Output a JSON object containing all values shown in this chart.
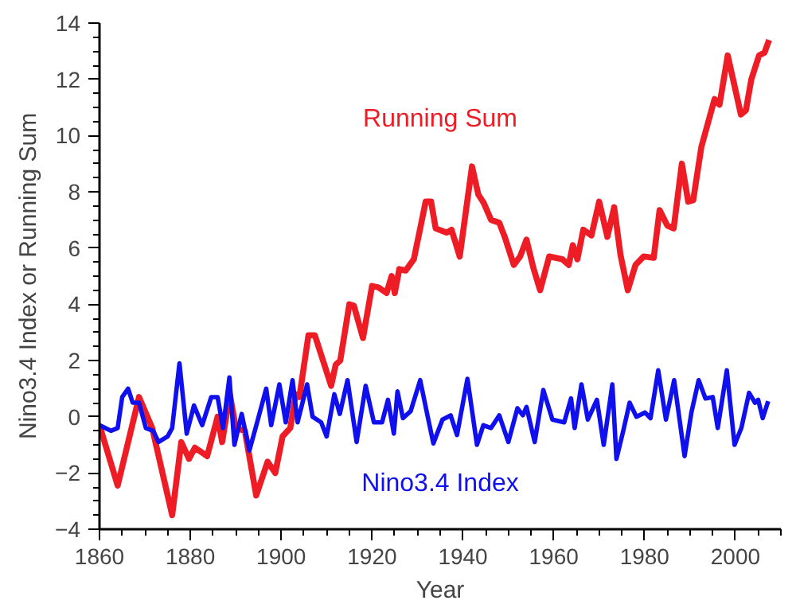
{
  "chart_data": {
    "type": "line",
    "xlabel": "Year",
    "ylabel": "Nino3.4 Index or Running Sum",
    "xlim": [
      1860,
      2010
    ],
    "ylim": [
      -4,
      14
    ],
    "xticks": [
      1860,
      1880,
      1900,
      1920,
      1940,
      1960,
      1980,
      2000
    ],
    "yticks": [
      -4,
      -2,
      0,
      2,
      4,
      6,
      8,
      10,
      12,
      14
    ],
    "grid": false,
    "marker": "none",
    "line_style": "solid",
    "series": [
      {
        "name": "Running Sum",
        "color": "#ee1c24",
        "x": [
          1860,
          1864,
          1868.7,
          1871.6,
          1876,
          1878,
          1879.7,
          1881,
          1883.7,
          1886,
          1887,
          1888.7,
          1890,
          1892,
          1894.5,
          1897,
          1898.7,
          1900.3,
          1902,
          1903.2,
          1904,
          1906,
          1907.4,
          1911,
          1912,
          1913,
          1915,
          1916,
          1918,
          1920,
          1921.4,
          1923.2,
          1924.3,
          1925,
          1926,
          1927.4,
          1929.2,
          1930.6,
          1931.8,
          1933,
          1934,
          1936.4,
          1937.5,
          1939.3,
          1942,
          1943.4,
          1944.6,
          1946.2,
          1948,
          1949.2,
          1951.2,
          1952.6,
          1954,
          1955.5,
          1957,
          1959,
          1961.9,
          1963.3,
          1964.2,
          1965.2,
          1966.5,
          1968.3,
          1970,
          1971.8,
          1973.3,
          1974.7,
          1976.3,
          1978,
          1979.8,
          1982,
          1983.3,
          1985,
          1986.4,
          1988.2,
          1989.6,
          1990.7,
          1992.5,
          1995.4,
          1996.5,
          1998.3,
          2001.2,
          2002.3,
          2003.5,
          2005.2,
          2006.4,
          2007.4
        ],
        "values": [
          -0.3,
          -2.45,
          0.7,
          -0.4,
          -3.5,
          -0.9,
          -1.5,
          -1.1,
          -1.4,
          0,
          -0.9,
          0.8,
          -0.4,
          -0.5,
          -2.8,
          -1.6,
          -2.0,
          -0.7,
          -0.4,
          0.8,
          0.7,
          2.9,
          2.9,
          1.1,
          1.85,
          2.0,
          4.0,
          3.95,
          2.8,
          4.65,
          4.6,
          4.4,
          5.0,
          4.4,
          5.25,
          5.2,
          5.6,
          6.7,
          7.65,
          7.65,
          6.7,
          6.55,
          6.65,
          5.7,
          8.9,
          7.9,
          7.6,
          7.0,
          6.9,
          6.4,
          5.4,
          5.7,
          6.3,
          5.3,
          4.5,
          5.7,
          5.6,
          5.4,
          6.1,
          5.6,
          6.65,
          6.45,
          7.65,
          6.4,
          7.45,
          5.75,
          4.5,
          5.4,
          5.7,
          5.65,
          7.35,
          6.8,
          6.7,
          9.0,
          7.65,
          7.7,
          9.6,
          11.3,
          11.1,
          12.85,
          10.75,
          10.9,
          12.0,
          12.85,
          12.95,
          13.4
        ]
      },
      {
        "name": "Nino3.4 Index",
        "color": "#1010ee",
        "x": [
          1860,
          1862.5,
          1864,
          1865,
          1866.3,
          1867.3,
          1868.7,
          1870.2,
          1871.8,
          1873,
          1875,
          1876,
          1877.6,
          1879.2,
          1880.8,
          1882.6,
          1884.6,
          1886,
          1887.2,
          1888.6,
          1889.7,
          1891.3,
          1893,
          1894.7,
          1896.7,
          1897.8,
          1899.6,
          1901,
          1902.5,
          1903.6,
          1905.7,
          1906.9,
          1908.8,
          1910,
          1911.7,
          1912.9,
          1914.6,
          1916.6,
          1918.6,
          1920.4,
          1922.2,
          1923.5,
          1924.8,
          1925.6,
          1926.8,
          1928.5,
          1930.6,
          1932,
          1933.5,
          1935.5,
          1937.3,
          1938.7,
          1941,
          1943.1,
          1944.5,
          1946.2,
          1948,
          1950,
          1952,
          1953.2,
          1954,
          1955.8,
          1957.7,
          1959.7,
          1962.3,
          1963.8,
          1964.6,
          1966.1,
          1967.5,
          1969.5,
          1971,
          1972.9,
          1973.8,
          1975.3,
          1976.7,
          1978.2,
          1980.1,
          1981.3,
          1983,
          1984.7,
          1986.5,
          1988.8,
          1990.3,
          1991.9,
          1993.4,
          1995,
          1996.1,
          1998.1,
          1999.8,
          2001.3,
          2003,
          2004.3,
          2005,
          2006,
          2007.2
        ],
        "values": [
          -0.3,
          -0.5,
          -0.4,
          0.7,
          1.0,
          0.5,
          0.5,
          -0.4,
          -0.5,
          -0.9,
          -0.7,
          -0.4,
          1.9,
          -0.6,
          0.4,
          -0.3,
          0.7,
          0.7,
          -0.4,
          1.4,
          -1.0,
          0.1,
          -1.2,
          -0.2,
          1.0,
          -0.3,
          1.15,
          -0.2,
          1.3,
          -0.2,
          1.15,
          0,
          -0.2,
          -0.7,
          0.8,
          0.1,
          1.3,
          -0.9,
          1.1,
          -0.2,
          -0.2,
          0.6,
          -0.6,
          0.9,
          -0.05,
          0.2,
          1.3,
          0.2,
          -0.95,
          -0.1,
          0.05,
          -0.65,
          1.35,
          -1.0,
          -0.3,
          -0.4,
          0.05,
          -0.9,
          0.3,
          0.05,
          0.35,
          -0.9,
          0.95,
          -0.1,
          -0.2,
          0.65,
          -0.4,
          1.15,
          -0.1,
          0.6,
          -1.0,
          1.15,
          -1.5,
          -0.5,
          0.5,
          0,
          0.15,
          -0.05,
          1.65,
          -0.1,
          1.3,
          -1.4,
          0.15,
          1.3,
          0.65,
          0.7,
          -0.4,
          1.65,
          -1.0,
          -0.4,
          0.85,
          0.5,
          0.6,
          -0.05,
          0.55
        ]
      }
    ]
  }
}
